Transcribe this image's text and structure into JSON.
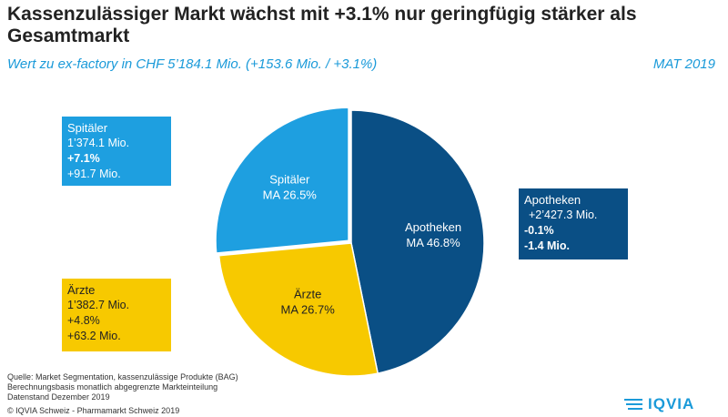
{
  "header": {
    "title": "Kassenzulässiger Markt wächst mit +3.1% nur geringfügig stärker als Gesamtmarkt",
    "subtitle": "Wert zu ex-factory in CHF 5’184.1 Mio. (+153.6 Mio. / +3.1%)",
    "period": "MAT 2019"
  },
  "chart_data": {
    "type": "pie",
    "categories": [
      "Apotheken",
      "Ärzte",
      "Spitäler"
    ],
    "values": [
      46.8,
      26.7,
      26.5
    ],
    "slice_labels": [
      {
        "name": "Apotheken",
        "share": "MA 46.8%"
      },
      {
        "name": "Ärzte",
        "share": "MA 26.7%"
      },
      {
        "name": "Spitäler",
        "share": "MA 26.5%"
      }
    ],
    "colors": [
      "#0a4f85",
      "#f7c900",
      "#1e9fe0"
    ],
    "exploded_slice": "Spitäler",
    "title": "",
    "xlabel": "",
    "ylabel": ""
  },
  "boxes": {
    "spitaeler": {
      "name": "Spitäler",
      "value": "1’374.1 Mio.",
      "pct": "+7.1%",
      "abs": "+91.7 Mio."
    },
    "aerzte": {
      "name": "Ärzte",
      "value": "1’382.7 Mio.",
      "pct": "+4.8%",
      "abs": "+63.2 Mio."
    },
    "apotheken": {
      "name": "Apotheken",
      "value": "+2’427.3 Mio.",
      "pct": "-0.1%",
      "abs": "-1.4 Mio."
    }
  },
  "footer": {
    "source": "Quelle: Market Segmentation, kassenzulässige Produkte (BAG)",
    "basis": "Berechnungsbasis monatlich abgegrenzte Markteinteilung",
    "date": "Datenstand Dezember 2019",
    "copyright": "© IQVIA Schweiz - Pharmamarkt Schweiz 2019"
  },
  "logo": {
    "text": "IQVIA"
  }
}
